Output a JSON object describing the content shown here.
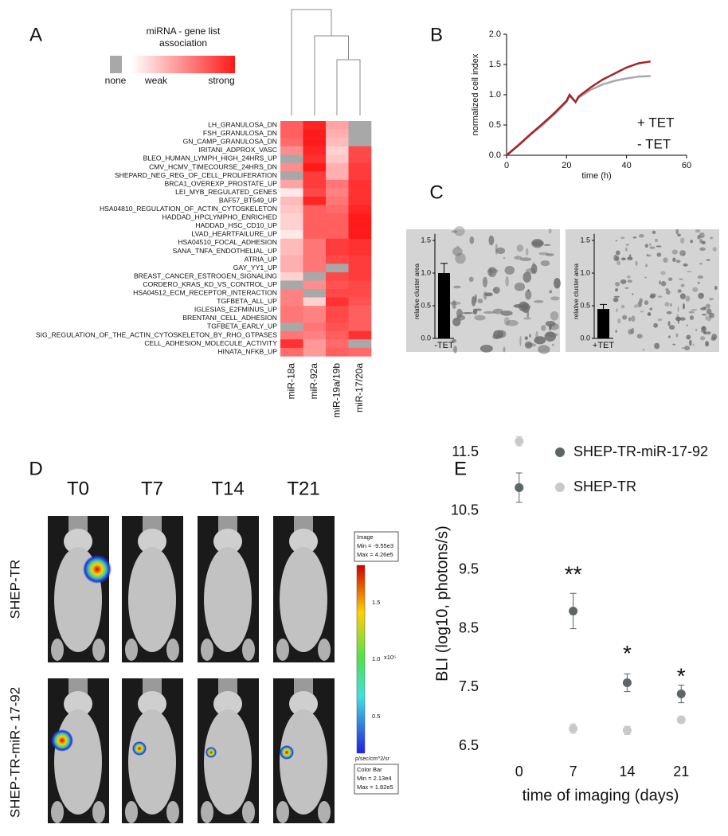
{
  "panel_labels": [
    "A",
    "B",
    "C",
    "D",
    "E"
  ],
  "chart_data": [
    {
      "type": "heatmap",
      "legend_title": [
        "miRNA - gene list",
        "association"
      ],
      "legend_labels": [
        "none",
        "weak",
        "strong"
      ],
      "colors": {
        "low": "#ffffff",
        "high": "#ff1a1a",
        "none": "#a8a8a8"
      },
      "columns": [
        "miR-18a",
        "miR-92a",
        "miR-19a/19b",
        "miR-17/20a"
      ],
      "rows": [
        "LH_GRANULOSA_DN",
        "FSH_GRANULOSA_DN",
        "GN_CAMP_GRANULOSA_DN",
        "IRITANI_ADPROX_VASC",
        "BLEO_HUMAN_LYMPH_HIGH_24HRS_UP",
        "CMV_HCMV_TIMECOURSE_24HRS_DN",
        "SHEPARD_NEG_REG_OF_CELL_PROLIFERATION",
        "BRCA1_OVEREXP_PROSTATE_UP",
        "LEI_MYB_REGULATED_GENES",
        "BAF57_BT549_UP",
        "HSA04810_REGULATION_OF_ACTIN_CYTOSKELETON",
        "HADDAD_HPCLYMPHO_ENRICHED",
        "HADDAD_HSC_CD10_UP",
        "LVAD_HEARTFAILURE_UP",
        "HSA04510_FOCAL_ADHESION",
        "SANA_TNFA_ENDOTHELIAL_UP",
        "ATRIA_UP",
        "GAY_YY1_UP",
        "BREAST_CANCER_ESTROGEN_SIGNALING",
        "CORDERO_KRAS_KD_VS_CONTROL_UP",
        "HSA04512_ECM_RECEPTOR_INTERACTION",
        "TGFBETA_ALL_UP",
        "IGLESIAS_E2FMINUS_UP",
        "BRENTANI_CELL_ADHESION",
        "TGFBETA_EARLY_UP",
        "SIG_REGULATION_OF_THE_ACTIN_CYTOSKELETON_BY_RHO_GTPASES",
        "CELL_ADHESION_MOLECULE_ACTIVITY",
        "HINATA_NFKB_UP"
      ],
      "values": [
        [
          0.7,
          0.95,
          0.4,
          null
        ],
        [
          0.7,
          1,
          0.35,
          null
        ],
        [
          0.65,
          1,
          0.3,
          null
        ],
        [
          0.5,
          0.95,
          0.2,
          0.8
        ],
        [
          null,
          0.9,
          0.25,
          0.8
        ],
        [
          0.5,
          1,
          0.35,
          0.85
        ],
        [
          null,
          0.85,
          0.35,
          0.85
        ],
        [
          0.4,
          0.85,
          0.6,
          0.9
        ],
        [
          0.1,
          0.8,
          0.55,
          0.9
        ],
        [
          0.3,
          0.95,
          0.6,
          0.9
        ],
        [
          0.25,
          0.7,
          0.65,
          0.95
        ],
        [
          0.2,
          0.7,
          0.7,
          1
        ],
        [
          0.2,
          0.7,
          0.7,
          1
        ],
        [
          0.1,
          0.7,
          0.7,
          1
        ],
        [
          0.3,
          0.6,
          0.85,
          0.9
        ],
        [
          0.3,
          0.6,
          0.85,
          0.9
        ],
        [
          0.35,
          0.6,
          0.8,
          0.85
        ],
        [
          0.35,
          0.6,
          null,
          0.85
        ],
        [
          0.2,
          null,
          0.8,
          0.85
        ],
        [
          null,
          0.5,
          0.75,
          0.8
        ],
        [
          0.55,
          null,
          0.8,
          0.8
        ],
        [
          0.55,
          0.2,
          0.9,
          0.75
        ],
        [
          0.6,
          0.55,
          0.8,
          0.7
        ],
        [
          0.6,
          0.55,
          0.8,
          0.7
        ],
        [
          null,
          0.6,
          0.75,
          0.7
        ],
        [
          0.6,
          0.55,
          0.7,
          0.9
        ],
        [
          0.9,
          0.45,
          0.65,
          null
        ],
        [
          0.65,
          0.45,
          0.7,
          0.65
        ]
      ]
    },
    {
      "type": "line",
      "x_label": "time (h)",
      "y_label": "normalized cell index",
      "x": [
        0,
        4,
        8,
        12,
        16,
        20,
        21,
        23,
        24,
        28,
        32,
        36,
        40,
        44,
        48
      ],
      "series": [
        {
          "name": "- TET",
          "color": "#a9a9a9",
          "values": [
            0,
            0.16,
            0.34,
            0.5,
            0.68,
            0.88,
            0.98,
            0.88,
            0.95,
            1.08,
            1.17,
            1.23,
            1.27,
            1.3,
            1.31
          ]
        },
        {
          "name": "+ TET",
          "color": "#a3262a",
          "values": [
            0,
            0.17,
            0.35,
            0.52,
            0.7,
            0.9,
            1.0,
            0.88,
            0.97,
            1.12,
            1.25,
            1.35,
            1.45,
            1.52,
            1.55
          ]
        }
      ],
      "xlim": [
        0,
        60
      ],
      "xticks": [
        0,
        20,
        40,
        60
      ],
      "ylim": [
        0,
        2
      ],
      "yticks": [
        {
          "value": 0,
          "label": "0.0"
        },
        {
          "value": 0.5,
          "label": "0.5"
        },
        {
          "value": 1,
          "label": "1.0"
        },
        {
          "value": 1.5,
          "label": "1.5"
        },
        {
          "value": 2,
          "label": "2.0"
        }
      ]
    },
    {
      "type": "bar",
      "y_label": "relative cluster area",
      "categories": [
        "-TET"
      ],
      "values": [
        1.0
      ],
      "errors": [
        0.15
      ],
      "color": "#000000",
      "ylim": [
        0,
        1.6
      ],
      "yticks": [
        {
          "value": 0,
          "label": "0.0"
        },
        {
          "value": 0.5,
          "label": "0.5"
        },
        {
          "value": 1,
          "label": "1.0"
        },
        {
          "value": 1.5,
          "label": "1.5"
        }
      ]
    },
    {
      "type": "bar",
      "y_label": "relative cluster area",
      "categories": [
        "+TET"
      ],
      "values": [
        0.45
      ],
      "errors": [
        0.07
      ],
      "color": "#000000",
      "ylim": [
        0,
        1.6
      ],
      "yticks": [
        {
          "value": 0,
          "label": "0.0"
        },
        {
          "value": 0.5,
          "label": "0.5"
        },
        {
          "value": 1,
          "label": "1.0"
        },
        {
          "value": 1.5,
          "label": "1.5"
        }
      ]
    },
    {
      "type": "scatter",
      "x_label": "time of imaging (days)",
      "y_label": "BLI (log10, photons/s)",
      "x": [
        0,
        7,
        14,
        21
      ],
      "series": [
        {
          "name": "SHEP-TR-miR-17-92",
          "color": "#5f6566",
          "values": [
            10.9,
            8.8,
            7.58,
            7.39
          ],
          "errors": [
            0.25,
            0.3,
            0.15,
            0.15
          ]
        },
        {
          "name": "SHEP-TR",
          "color": "#c8cac9",
          "values": [
            11.69,
            6.8,
            6.77,
            6.95
          ],
          "errors": [
            0.08,
            0.08,
            0.07,
            0.05
          ]
        }
      ],
      "annotations": [
        {
          "text": "**",
          "x": 7,
          "y": 9.4
        },
        {
          "text": "*",
          "x": 14,
          "y": 8.05
        },
        {
          "text": "*",
          "x": 21,
          "y": 7.67
        }
      ],
      "xlim": [
        -4,
        25
      ],
      "xticks": [
        0,
        7,
        14,
        21
      ],
      "ylim": [
        6.3,
        11.8
      ],
      "yticks": [
        6.5,
        7.5,
        8.5,
        9.5,
        10.5,
        11.5
      ]
    }
  ],
  "panel_d": {
    "timepoints": [
      "T0",
      "T7",
      "T14",
      "T21"
    ],
    "groups": [
      "SHEP-TR",
      "SHEP-TR-miR- 17-92"
    ],
    "image_box": [
      "Image",
      "Min = -9.55e3",
      "Max = 4.26e5"
    ],
    "colorbar_ticks": [
      "1.5",
      "1.0",
      "0.5"
    ],
    "colorbar_scale": "x10⁵",
    "colorbar_unit": "p/sec/cm^2/sr",
    "colorbar_box": [
      "Color Bar",
      "Min = 2.13e4",
      "Max = 1.82e5"
    ]
  }
}
